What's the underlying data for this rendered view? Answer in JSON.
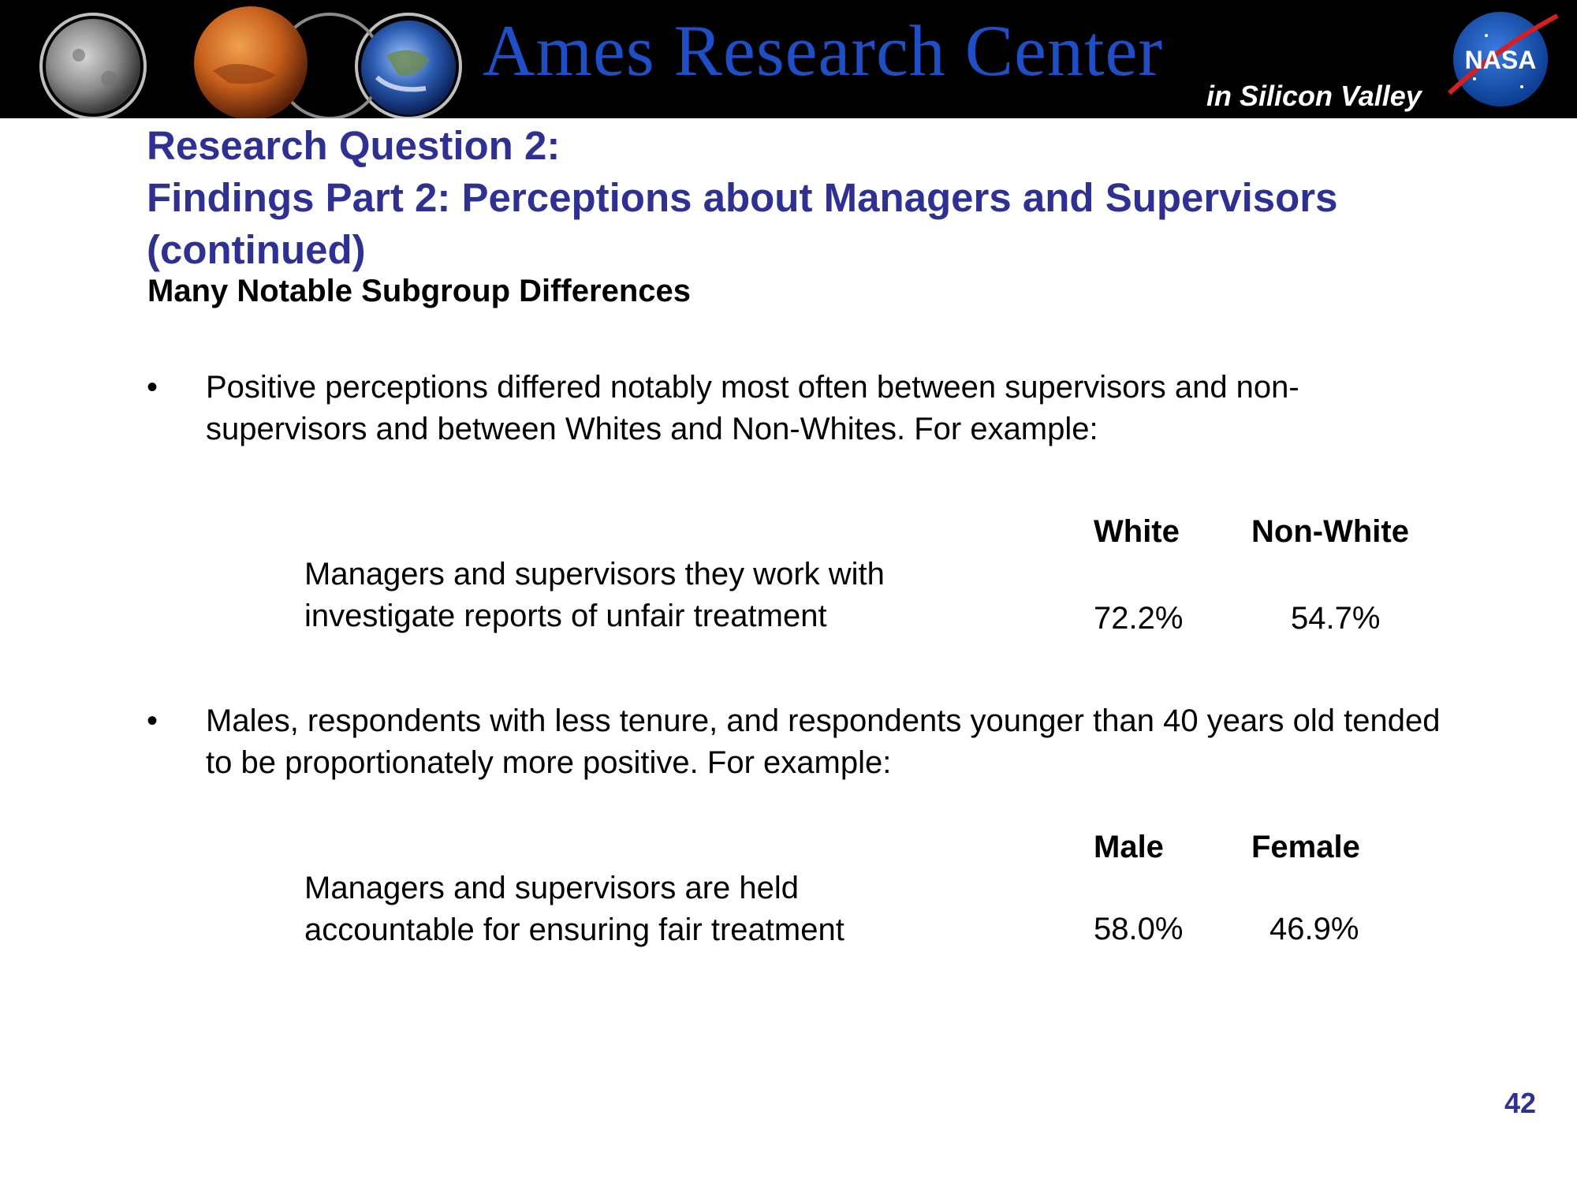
{
  "banner": {
    "title": "Ames Research Center",
    "subtitle": "in Silicon Valley",
    "logo_text": "NASA",
    "planet_icons": [
      "moon-icon",
      "mars-icon",
      "earth-icon"
    ]
  },
  "slide": {
    "title_line1": "Research Question 2:",
    "title_line2": "Findings Part 2: Perceptions about Managers and Supervisors",
    "title_line3": "(continued)",
    "subtitle": "Many Notable Subgroup Differences",
    "bullet1": {
      "text": "Positive perceptions differed notably most often between supervisors and non-supervisors and between Whites and Non-Whites. For example:"
    },
    "table1": {
      "col1": "White",
      "col2": "Non-White",
      "label_line1": "Managers and supervisors they work with",
      "label_line2": "investigate reports of unfair treatment",
      "val1": "72.2%",
      "val2": "54.7%"
    },
    "bullet2": {
      "text": "Males, respondents with less tenure, and respondents younger than 40 years old tended to be proportionately more positive. For example:"
    },
    "table2": {
      "col1": "Male",
      "col2": "Female",
      "label_line1": "Managers and supervisors are held",
      "label_line2": "accountable for ensuring fair treatment",
      "val1": "58.0%",
      "val2": "46.9%"
    },
    "page_number": "42"
  },
  "colors": {
    "title": "#2e3192",
    "banner_text": "#1f4fc6",
    "banner_bg": "#000000"
  }
}
